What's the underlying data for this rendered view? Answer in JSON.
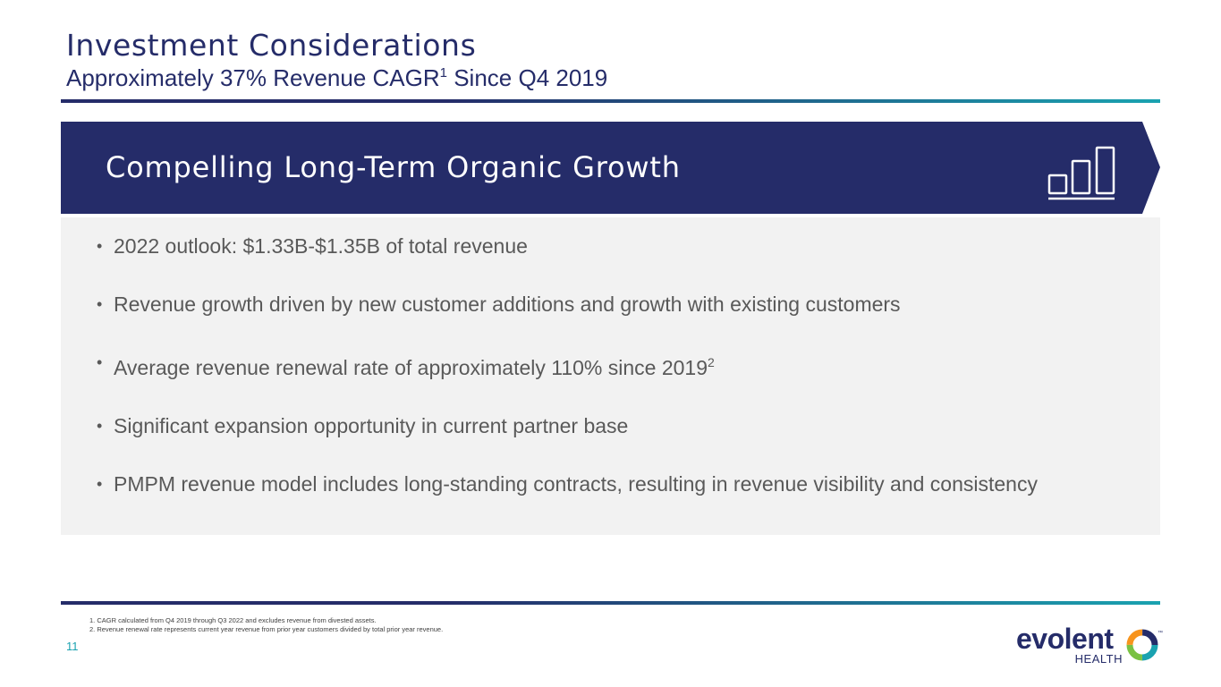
{
  "header": {
    "title": "Investment Considerations",
    "subtitle": "Approximately 37% Revenue CAGR",
    "subtitle_sup": "1",
    "subtitle_tail": " Since Q4 2019"
  },
  "banner": {
    "title": "Compelling Long-Term Organic Growth",
    "icon": "bar-chart-icon"
  },
  "bullets": [
    {
      "text": "2022 outlook: $1.33B-$1.35B of total revenue"
    },
    {
      "text": "Revenue growth driven by new customer additions and growth with existing customers"
    },
    {
      "text": "Average revenue renewal rate of approximately 110% since 2019",
      "sup": "2"
    },
    {
      "text": "Significant expansion opportunity in current partner base"
    },
    {
      "text": "PMPM revenue model includes long-standing contracts, resulting in revenue visibility and consistency"
    }
  ],
  "footnotes": [
    "1.  CAGR calculated from Q4 2019 through Q3 2022 and excludes revenue from divested assets.",
    "2.  Revenue renewal rate represents current year revenue from prior year customers divided by total prior year revenue."
  ],
  "page_number": "11",
  "logo": {
    "word": "evolent",
    "sub": "HEALTH",
    "tm": "™"
  },
  "colors": {
    "navy": "#252c69",
    "teal": "#1aa2b0",
    "panel": "#f2f2f2",
    "body_text": "#595959"
  }
}
